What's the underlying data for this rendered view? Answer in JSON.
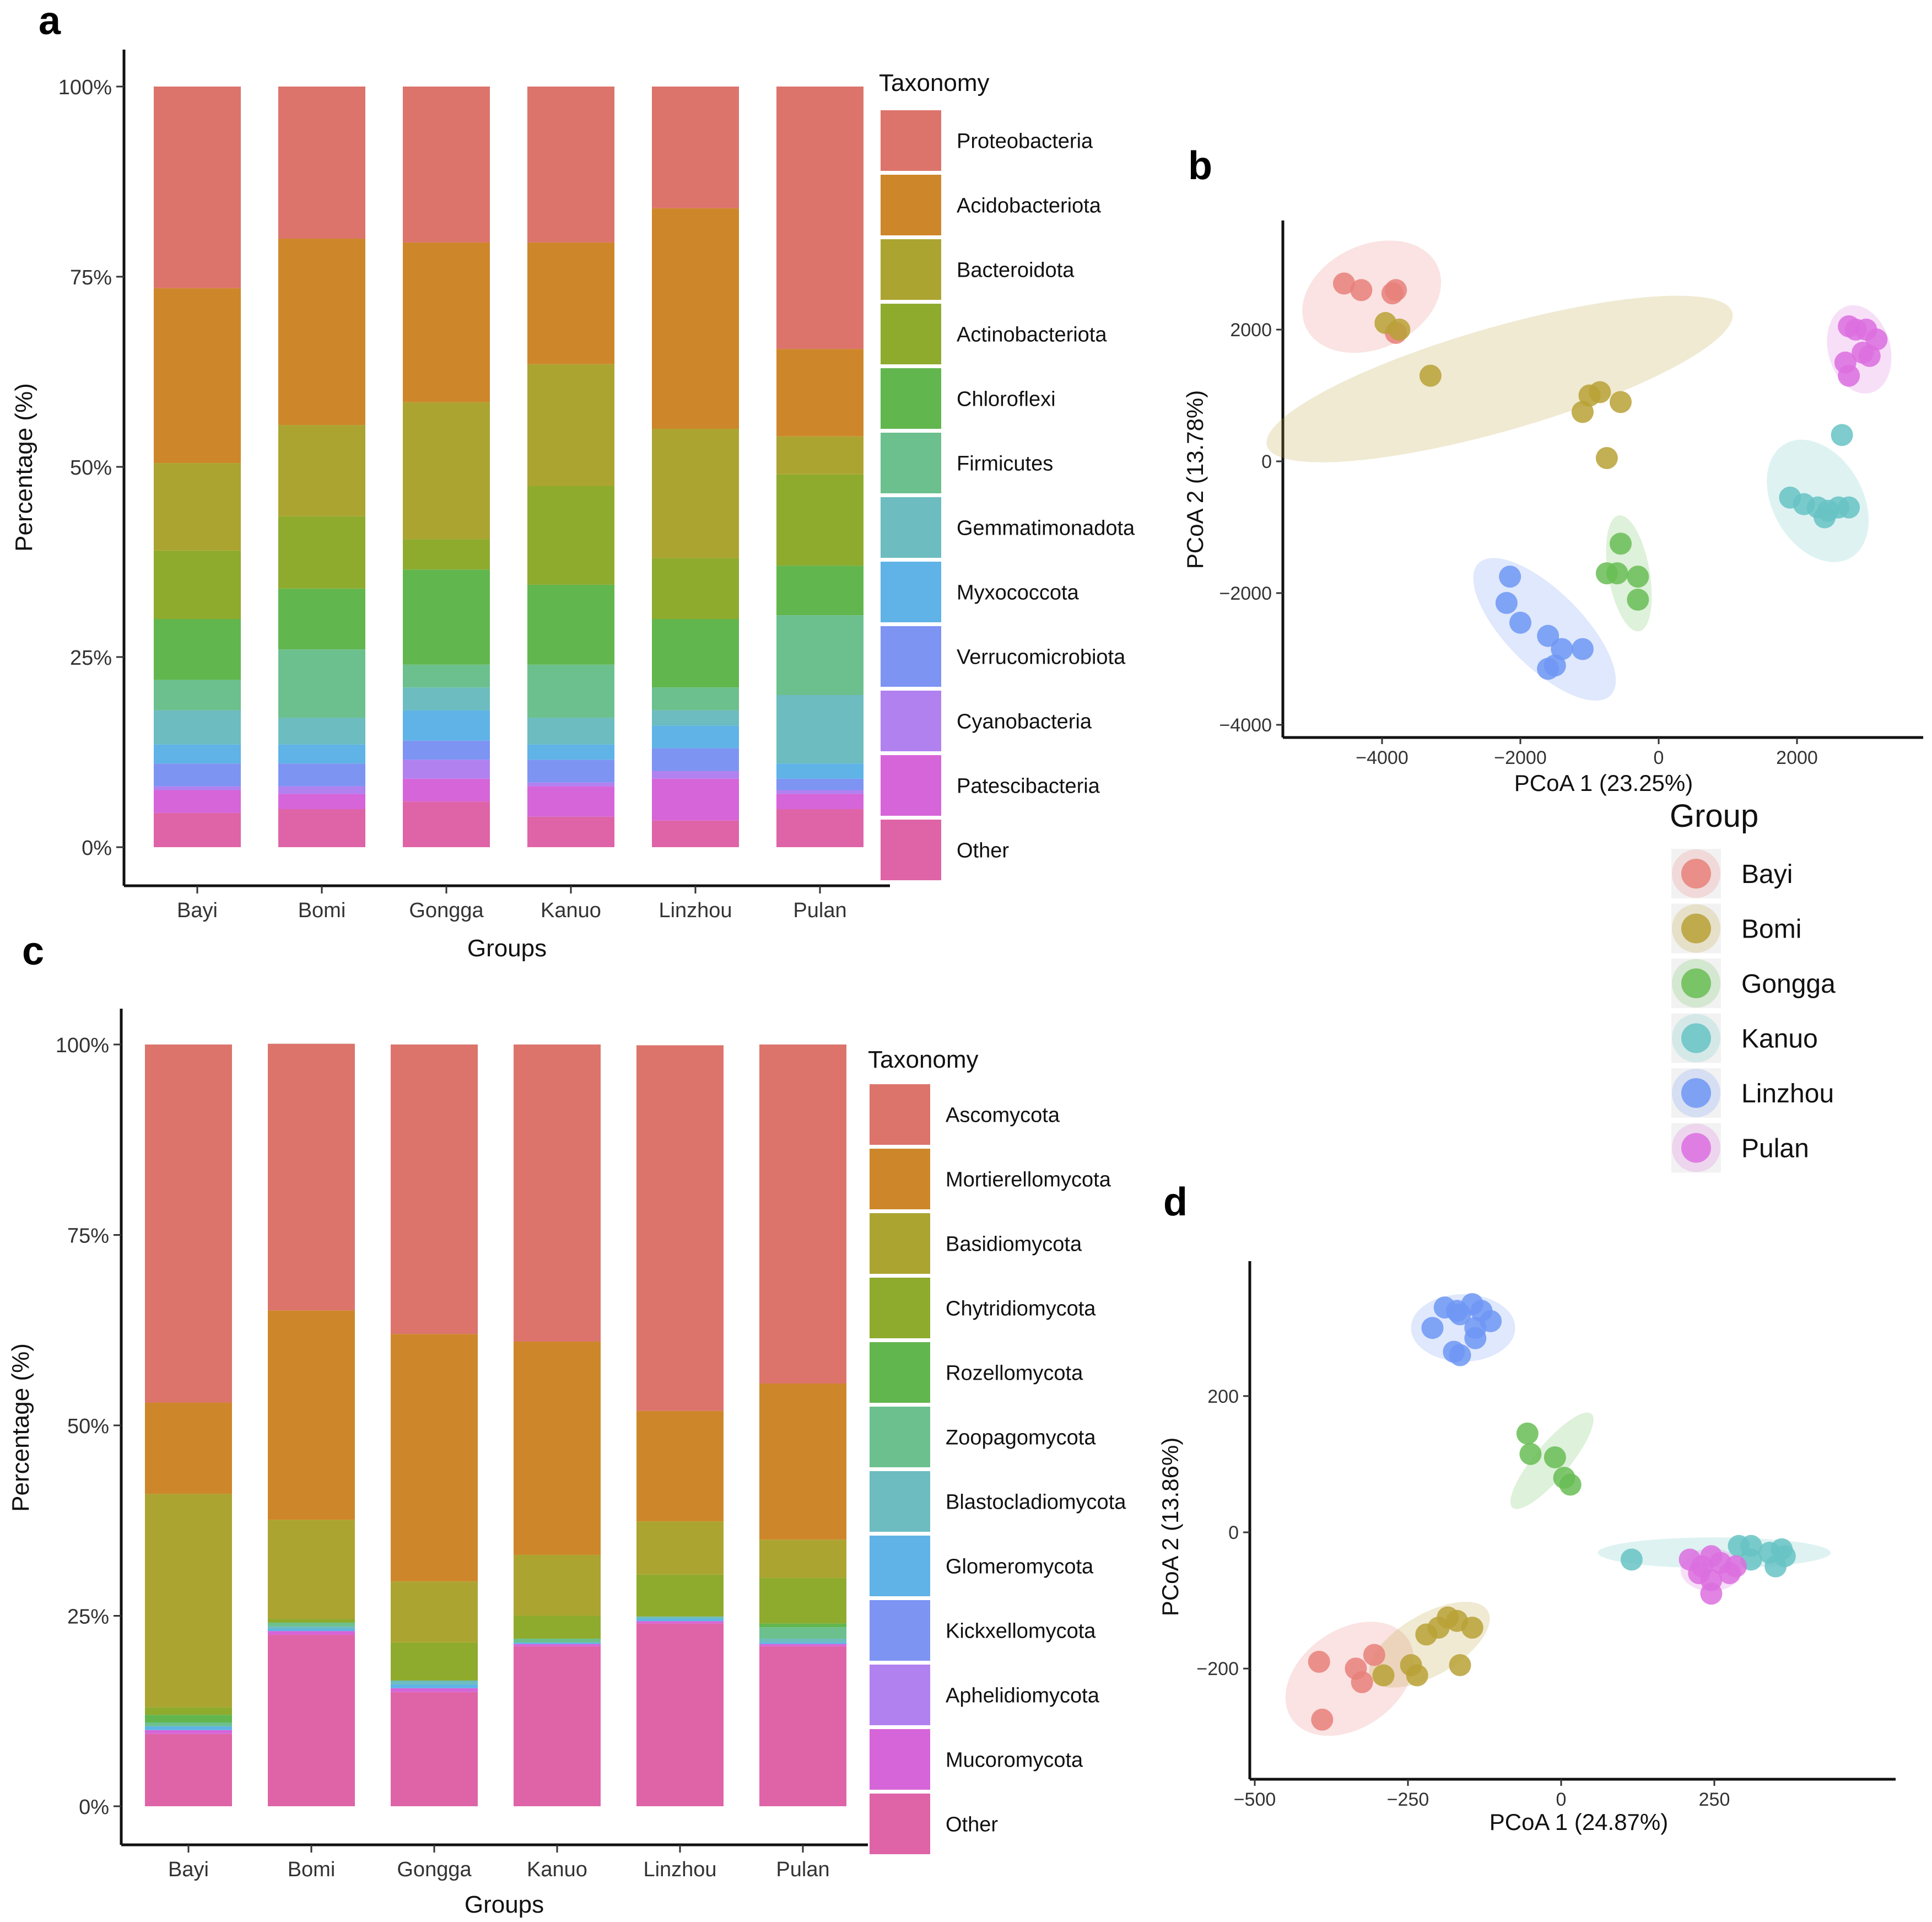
{
  "colors": {
    "bacteria": [
      "#dc746c",
      "#cd872a",
      "#aca431",
      "#8eab2e",
      "#62b64e",
      "#6cc08e",
      "#6cbcc0",
      "#5fb3e6",
      "#7d94f3",
      "#b281f0",
      "#d665d9",
      "#de64a7"
    ],
    "fungi": [
      "#dc746c",
      "#cd872a",
      "#aca431",
      "#8eab2e",
      "#62b64e",
      "#6cc08e",
      "#6cbcc0",
      "#5fb3e6",
      "#7d94f3",
      "#b281f0",
      "#d665d9",
      "#de64a7"
    ],
    "groups": [
      "#e8807a",
      "#b9a136",
      "#69bd55",
      "#67c3c4",
      "#6f96f3",
      "#dc6fdf"
    ]
  },
  "panels": {
    "a": "a",
    "b": "b",
    "c": "c",
    "d": "d"
  },
  "chart_data": [
    {
      "id": "a",
      "type": "bar",
      "stacked": true,
      "xlabel": "Groups",
      "ylabel": "Percentage (%)",
      "yticks": [
        "0%",
        "25%",
        "50%",
        "75%",
        "100%"
      ],
      "ylim": [
        0,
        100
      ],
      "legend_title": "Taxonomy",
      "categories": [
        "Bayi",
        "Bomi",
        "Gongga",
        "Kanuo",
        "Linzhou",
        "Pulan"
      ],
      "series": [
        {
          "name": "Other",
          "values": [
            4.5,
            5.0,
            6.0,
            4.0,
            3.5,
            5.0
          ]
        },
        {
          "name": "Patescibacteria",
          "values": [
            3.0,
            2.0,
            3.0,
            4.0,
            5.5,
            2.0
          ]
        },
        {
          "name": "Cyanobacteria",
          "values": [
            0.5,
            1.0,
            2.5,
            0.5,
            1.0,
            0.5
          ]
        },
        {
          "name": "Verrucomicrobiota",
          "values": [
            3.0,
            3.0,
            2.5,
            3.0,
            3.0,
            1.5
          ]
        },
        {
          "name": "Myxococcota",
          "values": [
            2.5,
            2.5,
            4.0,
            2.0,
            3.0,
            2.0
          ]
        },
        {
          "name": "Gemmatimonadota",
          "values": [
            4.5,
            3.5,
            3.0,
            3.5,
            2.0,
            9.0
          ]
        },
        {
          "name": "Firmicutes",
          "values": [
            4.0,
            9.0,
            3.0,
            7.0,
            3.0,
            10.5
          ]
        },
        {
          "name": "Chloroflexi",
          "values": [
            8.0,
            8.0,
            12.5,
            10.5,
            9.0,
            6.5
          ]
        },
        {
          "name": "Actinobacteriota",
          "values": [
            9.0,
            9.5,
            4.0,
            13.0,
            8.0,
            12.0
          ]
        },
        {
          "name": "Bacteroidota",
          "values": [
            11.5,
            12.0,
            18.0,
            16.0,
            17.0,
            5.0
          ]
        },
        {
          "name": "Acidobacteriota",
          "values": [
            23.0,
            24.5,
            21.0,
            16.0,
            29.0,
            11.5
          ]
        },
        {
          "name": "Proteobacteria",
          "values": [
            26.5,
            20.0,
            20.5,
            20.5,
            16.0,
            34.5
          ]
        }
      ],
      "legend_order": [
        "Proteobacteria",
        "Acidobacteriota",
        "Bacteroidota",
        "Actinobacteriota",
        "Chloroflexi",
        "Firmicutes",
        "Gemmatimonadota",
        "Myxococcota",
        "Verrucomicrobiota",
        "Cyanobacteria",
        "Patescibacteria",
        "Other"
      ]
    },
    {
      "id": "b",
      "type": "scatter",
      "xlabel": "PCoA 1 (23.25%)",
      "ylabel": "PCoA 2 (13.78%)",
      "xlim": [
        -5300,
        3800
      ],
      "ylim": [
        -4200,
        3700
      ],
      "xticks": [
        -4000,
        -2000,
        0,
        2000
      ],
      "yticks": [
        -4000,
        -2000,
        0,
        2000
      ],
      "xtick_labels": [
        "−4000",
        "−2000",
        "0",
        "2000"
      ],
      "ytick_labels": [
        "−4000",
        "−2000",
        "0",
        "2000"
      ],
      "groups": [
        {
          "name": "Bayi",
          "points": [
            [
              -4550,
              2700
            ],
            [
              -4300,
              2600
            ],
            [
              -3850,
              2550
            ],
            [
              -3800,
              2600
            ],
            [
              -3800,
              1950
            ]
          ],
          "ellipse": {
            "cx": -4150,
            "cy": 2500,
            "rx": 1050,
            "ry": 750,
            "angle": -25
          }
        },
        {
          "name": "Bomi",
          "points": [
            [
              -3950,
              2100
            ],
            [
              -3750,
              2000
            ],
            [
              -3300,
              1300
            ],
            [
              -1100,
              750
            ],
            [
              -1000,
              1000
            ],
            [
              -850,
              1050
            ],
            [
              -550,
              900
            ],
            [
              -750,
              50
            ]
          ],
          "ellipse": {
            "cx": -2300,
            "cy": 1250,
            "rx": 3500,
            "ry": 750,
            "angle": -16
          }
        },
        {
          "name": "Gongga",
          "points": [
            [
              -550,
              -1250
            ],
            [
              -750,
              -1700
            ],
            [
              -600,
              -1700
            ],
            [
              -300,
              -1750
            ],
            [
              -300,
              -2100
            ]
          ],
          "ellipse": {
            "cx": -430,
            "cy": -1700,
            "rx": 850,
            "ry": 300,
            "angle": 80
          }
        },
        {
          "name": "Kanuo",
          "points": [
            [
              2650,
              400
            ],
            [
              1900,
              -550
            ],
            [
              2100,
              -650
            ],
            [
              2300,
              -700
            ],
            [
              2450,
              -750
            ],
            [
              2600,
              -700
            ],
            [
              2750,
              -700
            ],
            [
              2400,
              -850
            ]
          ],
          "ellipse": {
            "cx": 2300,
            "cy": -600,
            "rx": 950,
            "ry": 650,
            "angle": 60
          }
        },
        {
          "name": "Linzhou",
          "points": [
            [
              -2150,
              -1750
            ],
            [
              -2200,
              -2150
            ],
            [
              -2000,
              -2450
            ],
            [
              -1600,
              -2650
            ],
            [
              -1400,
              -2850
            ],
            [
              -1600,
              -3150
            ],
            [
              -1500,
              -3100
            ],
            [
              -1100,
              -2850
            ]
          ],
          "ellipse": {
            "cx": -1650,
            "cy": -2550,
            "rx": 1350,
            "ry": 550,
            "angle": 45
          }
        },
        {
          "name": "Pulan",
          "points": [
            [
              2750,
              2050
            ],
            [
              3000,
              2000
            ],
            [
              2850,
              2000
            ],
            [
              3150,
              1850
            ],
            [
              2950,
              1650
            ],
            [
              2700,
              1500
            ],
            [
              3050,
              1600
            ],
            [
              2750,
              1300
            ]
          ],
          "ellipse": {
            "cx": 2900,
            "cy": 1700,
            "rx": 650,
            "ry": 450,
            "angle": 75
          }
        }
      ],
      "legend_title": "Group"
    },
    {
      "id": "c",
      "type": "bar",
      "stacked": true,
      "xlabel": "Groups",
      "ylabel": "Percentage (%)",
      "yticks": [
        "0%",
        "25%",
        "50%",
        "75%",
        "100%"
      ],
      "ylim": [
        0,
        100
      ],
      "legend_title": "Taxonomy",
      "categories": [
        "Bayi",
        "Bomi",
        "Gongga",
        "Kanuo",
        "Linzhou",
        "Pulan"
      ],
      "series": [
        {
          "name": "Other",
          "values": [
            9.5,
            22.5,
            15.0,
            21.0,
            24.0,
            21.0
          ]
        },
        {
          "name": "Mucoromycota",
          "values": [
            0.5,
            0.5,
            0.5,
            0.3,
            0.3,
            0.3
          ]
        },
        {
          "name": "Aphelidiomycota",
          "values": [
            0.0,
            0.0,
            0.0,
            0.0,
            0.0,
            0.0
          ]
        },
        {
          "name": "Kickxellomycota",
          "values": [
            0.0,
            0.0,
            0.0,
            0.0,
            0.0,
            0.0
          ]
        },
        {
          "name": "Glomeromycota",
          "values": [
            0.5,
            0.3,
            0.5,
            0.2,
            0.3,
            0.2
          ]
        },
        {
          "name": "Blastocladiomycota",
          "values": [
            0.0,
            0.3,
            0.5,
            0.0,
            0.3,
            0.5
          ]
        },
        {
          "name": "Zoopagomycota",
          "values": [
            0.5,
            0.5,
            0.0,
            0.5,
            0.0,
            1.5
          ]
        },
        {
          "name": "Rozellomycota",
          "values": [
            1.0,
            0.0,
            0.0,
            0.0,
            0.0,
            0.5
          ]
        },
        {
          "name": "Chytridiomycota",
          "values": [
            1.0,
            0.5,
            5.0,
            3.0,
            5.5,
            6.0
          ]
        },
        {
          "name": "Basidiomycota",
          "values": [
            28.0,
            13.0,
            8.0,
            8.0,
            7.0,
            5.0
          ]
        },
        {
          "name": "Mortierellomycota",
          "values": [
            12.0,
            27.5,
            32.5,
            28.0,
            14.5,
            20.5
          ]
        },
        {
          "name": "Ascomycota",
          "values": [
            47.0,
            35.0,
            38.0,
            39.0,
            48.0,
            44.5
          ]
        }
      ],
      "legend_order": [
        "Ascomycota",
        "Mortierellomycota",
        "Basidiomycota",
        "Chytridiomycota",
        "Rozellomycota",
        "Zoopagomycota",
        "Blastocladiomycota",
        "Glomeromycota",
        "Kickxellomycota",
        "Aphelidiomycota",
        "Mucoromycota",
        "Other"
      ]
    },
    {
      "id": "d",
      "type": "scatter",
      "xlabel": "PCoA 1 (24.87%)",
      "ylabel": "PCoA 2 (13.86%)",
      "xlim": [
        -510,
        545
      ],
      "ylim": [
        -360,
        395
      ],
      "xticks": [
        -500,
        -250,
        0,
        250
      ],
      "yticks": [
        -200,
        0,
        200
      ],
      "xtick_labels": [
        "−500",
        "−250",
        "0",
        "250"
      ],
      "ytick_labels": [
        "−200",
        "0",
        "200"
      ],
      "groups": [
        {
          "name": "Bayi",
          "points": [
            [
              -395,
              -190
            ],
            [
              -390,
              -275
            ],
            [
              -335,
              -200
            ],
            [
              -305,
              -180
            ],
            [
              -325,
              -220
            ]
          ],
          "ellipse": {
            "cx": -345,
            "cy": -215,
            "rx": 115,
            "ry": 80,
            "angle": -35
          }
        },
        {
          "name": "Bomi",
          "points": [
            [
              -290,
              -210
            ],
            [
              -245,
              -195
            ],
            [
              -235,
              -210
            ],
            [
              -220,
              -150
            ],
            [
              -200,
              -140
            ],
            [
              -185,
              -125
            ],
            [
              -170,
              -130
            ],
            [
              -145,
              -140
            ],
            [
              -165,
              -195
            ]
          ],
          "ellipse": {
            "cx": -215,
            "cy": -165,
            "rx": 110,
            "ry": 50,
            "angle": -30
          }
        },
        {
          "name": "Gongga",
          "points": [
            [
              -55,
              145
            ],
            [
              -50,
              115
            ],
            [
              -10,
              110
            ],
            [
              5,
              80
            ],
            [
              15,
              70
            ]
          ],
          "ellipse": {
            "cx": -15,
            "cy": 105,
            "rx": 100,
            "ry": 28,
            "angle": -50
          }
        },
        {
          "name": "Kanuo",
          "points": [
            [
              115,
              -40
            ],
            [
              290,
              -20
            ],
            [
              310,
              -20
            ],
            [
              310,
              -40
            ],
            [
              340,
              -30
            ],
            [
              350,
              -50
            ],
            [
              360,
              -25
            ],
            [
              365,
              -35
            ]
          ],
          "ellipse": {
            "cx": 250,
            "cy": -30,
            "rx": 190,
            "ry": 25,
            "angle": 0
          }
        },
        {
          "name": "Pulan",
          "points": [
            [
              210,
              -40
            ],
            [
              230,
              -50
            ],
            [
              245,
              -35
            ],
            [
              225,
              -60
            ],
            [
              245,
              -70
            ],
            [
              260,
              -45
            ],
            [
              275,
              -60
            ],
            [
              285,
              -50
            ],
            [
              245,
              -90
            ]
          ],
          "ellipse": {
            "cx": 245,
            "cy": -55,
            "rx": 50,
            "ry": 35,
            "angle": 0
          }
        },
        {
          "name": "Linzhou",
          "points": [
            [
              -210,
              300
            ],
            [
              -190,
              330
            ],
            [
              -170,
              325
            ],
            [
              -165,
              320
            ],
            [
              -145,
              335
            ],
            [
              -130,
              325
            ],
            [
              -115,
              310
            ],
            [
              -140,
              300
            ],
            [
              -140,
              285
            ],
            [
              -175,
              265
            ],
            [
              -165,
              260
            ]
          ],
          "ellipse": {
            "cx": -160,
            "cy": 300,
            "rx": 85,
            "ry": 55,
            "angle": 0
          }
        }
      ]
    }
  ],
  "group_legend": {
    "title": "Group",
    "items": [
      "Bayi",
      "Bomi",
      "Gongga",
      "Kanuo",
      "Linzhou",
      "Pulan"
    ]
  }
}
